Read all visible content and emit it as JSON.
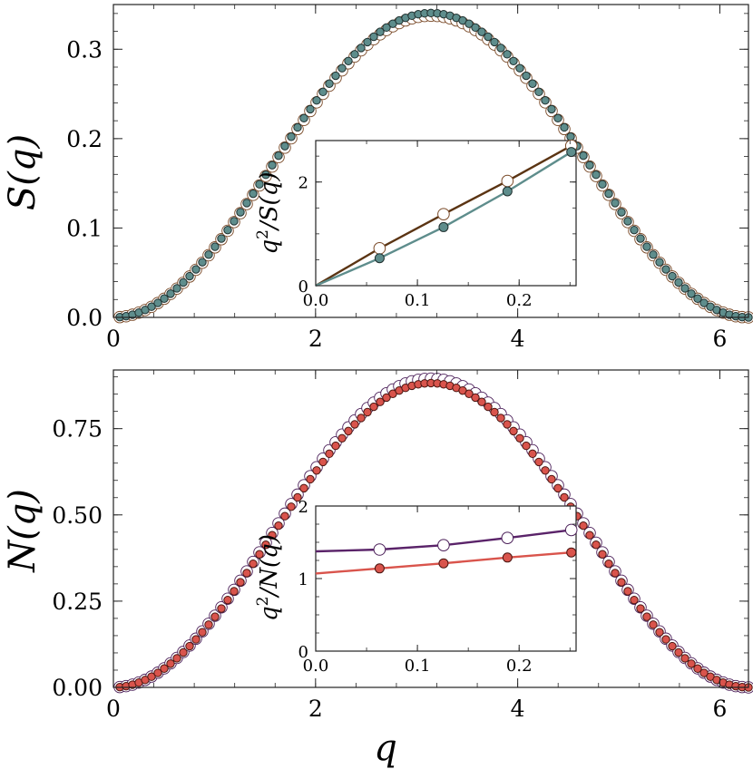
{
  "chart_data": [
    {
      "id": "top",
      "type": "scatter",
      "ylabel": "S(q)",
      "xlabel": "",
      "xlim": [
        0,
        6.2832
      ],
      "ylim": [
        0,
        0.35
      ],
      "x_ticks": [
        0,
        2,
        4,
        6
      ],
      "x_tick_labels": [
        "0",
        "2",
        "4",
        "6"
      ],
      "y_ticks": [
        0.0,
        0.1,
        0.2,
        0.3
      ],
      "y_tick_labels": [
        "0.0",
        "0.1",
        "0.2",
        "0.3"
      ],
      "series": [
        {
          "name": "open",
          "amplitude": 0.3375,
          "marker": "open",
          "edge_color": "#7a4a28",
          "face_color": "#ffffff",
          "q_points": 100
        },
        {
          "name": "filled",
          "amplitude": 0.3405,
          "marker": "filled",
          "edge_color": "#1f2f2e",
          "face_color": "#5e8d8c",
          "q_points": 100
        }
      ],
      "inset": {
        "ylabel": "q^2/S(q)",
        "xlim": [
          0,
          0.256
        ],
        "ylim": [
          0,
          2.8
        ],
        "x_ticks": [
          0.0,
          0.1,
          0.2
        ],
        "x_tick_labels": [
          "0.0",
          "0.1",
          "0.2"
        ],
        "y_ticks": [
          0,
          2
        ],
        "y_tick_labels": [
          "0",
          "2"
        ],
        "series": [
          {
            "name": "open",
            "line_color": "#5b3413",
            "x": [
              0.0628,
              0.1257,
              0.1885,
              0.2513
            ],
            "y": [
              0.72,
              1.38,
              2.02,
              2.7
            ],
            "fit_y0": 0.0
          },
          {
            "name": "filled",
            "line_color": "#5e8d8c",
            "x": [
              0.0628,
              0.1257,
              0.1885,
              0.2513
            ],
            "y": [
              0.53,
              1.13,
              1.82,
              2.58
            ],
            "fit_y0": 0.0
          }
        ]
      }
    },
    {
      "id": "bottom",
      "type": "scatter",
      "ylabel": "N(q)",
      "xlabel": "q",
      "xlim": [
        0,
        6.2832
      ],
      "ylim": [
        0,
        0.92
      ],
      "x_ticks": [
        0,
        2,
        4,
        6
      ],
      "x_tick_labels": [
        "0",
        "2",
        "4",
        "6"
      ],
      "y_ticks": [
        0.0,
        0.25,
        0.5,
        0.75
      ],
      "y_tick_labels": [
        "0.00",
        "0.25",
        "0.50",
        "0.75"
      ],
      "series": [
        {
          "name": "open",
          "amplitude": 0.895,
          "marker": "open",
          "edge_color": "#4b1f59",
          "face_color": "#ffffff",
          "q_points": 100
        },
        {
          "name": "filled",
          "amplitude": 0.882,
          "marker": "filled",
          "edge_color": "#4a1510",
          "face_color": "#d9544c",
          "q_points": 100
        }
      ],
      "inset": {
        "ylabel": "q^2/N(q)",
        "xlim": [
          0,
          0.256
        ],
        "ylim": [
          0,
          2.0
        ],
        "x_ticks": [
          0.0,
          0.1,
          0.2
        ],
        "x_tick_labels": [
          "0.0",
          "0.1",
          "0.2"
        ],
        "y_ticks": [
          0,
          1,
          2
        ],
        "y_tick_labels": [
          "0",
          "1",
          "2"
        ],
        "series": [
          {
            "name": "open",
            "line_color": "#5a2369",
            "x": [
              0.0628,
              0.1257,
              0.1885,
              0.2513
            ],
            "y": [
              1.4,
              1.46,
              1.56,
              1.67
            ],
            "fit_y0": 1.375
          },
          {
            "name": "filled",
            "line_color": "#d9544c",
            "x": [
              0.0628,
              0.1257,
              0.1885,
              0.2513
            ],
            "y": [
              1.14,
              1.21,
              1.29,
              1.36
            ],
            "fit_y0": 1.07
          }
        ]
      }
    }
  ]
}
